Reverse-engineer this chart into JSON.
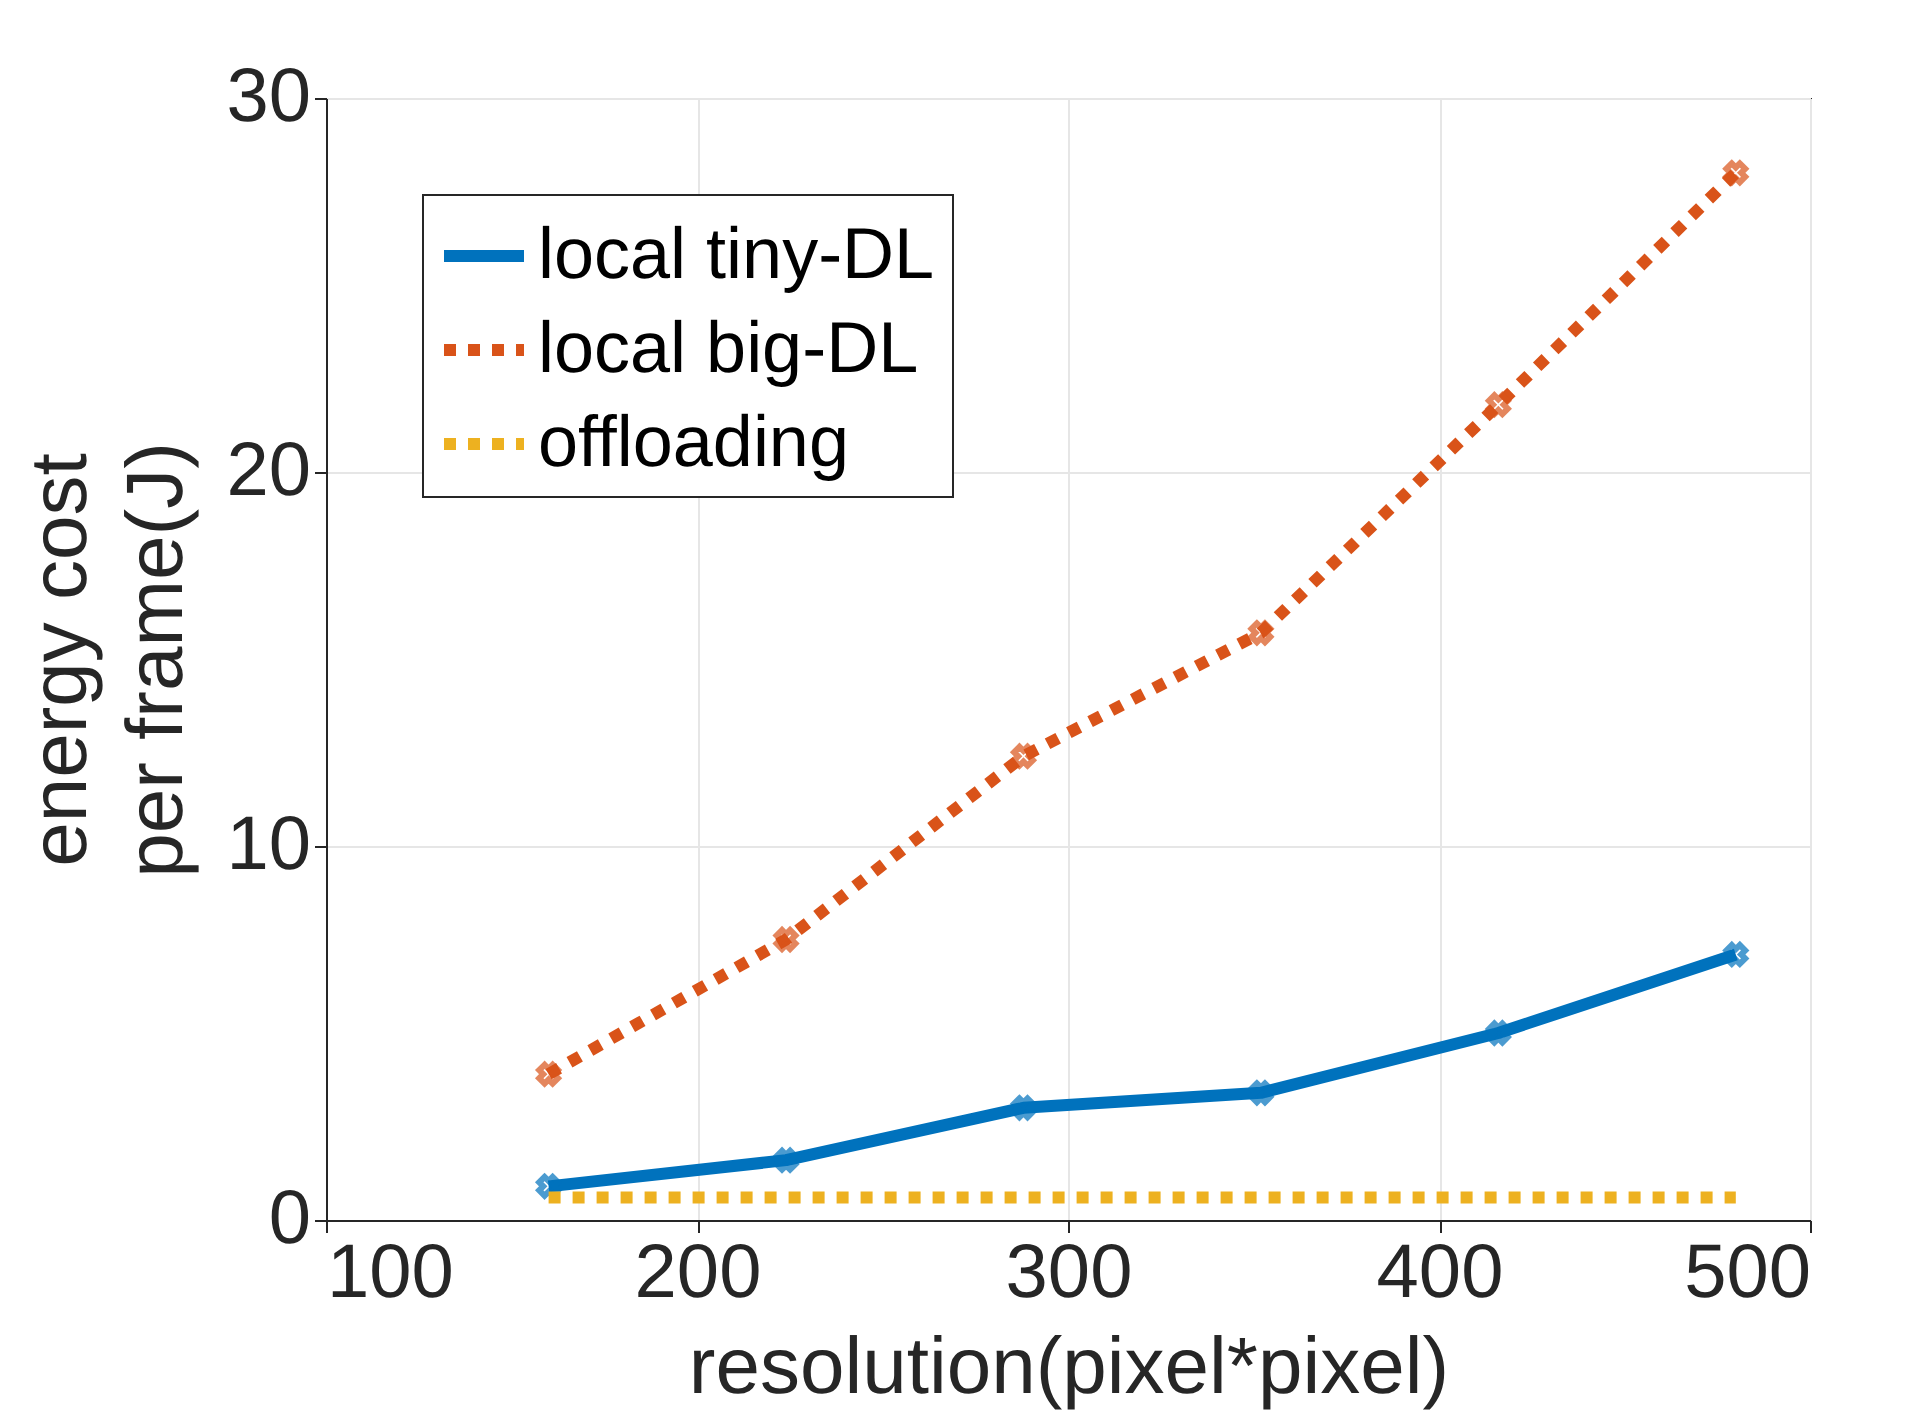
{
  "chart_data": {
    "type": "line",
    "xlabel": "resolution(pixel*pixel)",
    "ylabel": "energy cost\nper frame(J)",
    "x": [
      160,
      224,
      288,
      352,
      416,
      480
    ],
    "xlim": [
      100,
      500
    ],
    "xticks": [
      100,
      200,
      300,
      400,
      500
    ],
    "ylim": [
      0,
      30
    ],
    "yticks": [
      0,
      10,
      20,
      30
    ],
    "grid": true,
    "legend": "top left",
    "series": [
      {
        "name": "local tiny-DL",
        "color": "#0072bd",
        "values": [
          0.9,
          1.6,
          3.0,
          3.4,
          5.0,
          7.1
        ],
        "marker": "cross",
        "line_style": "solid"
      },
      {
        "name": "local big-DL",
        "color": "#d95319",
        "values": [
          3.9,
          7.5,
          12.4,
          15.7,
          21.8,
          28.0
        ],
        "marker": "cross",
        "line_style": "dotted"
      },
      {
        "name": "offloading",
        "color": "#edb120",
        "values": [
          0.6,
          0.6,
          0.6,
          0.6,
          0.6,
          0.6
        ],
        "marker": "none",
        "line_style": "dotted"
      }
    ]
  }
}
